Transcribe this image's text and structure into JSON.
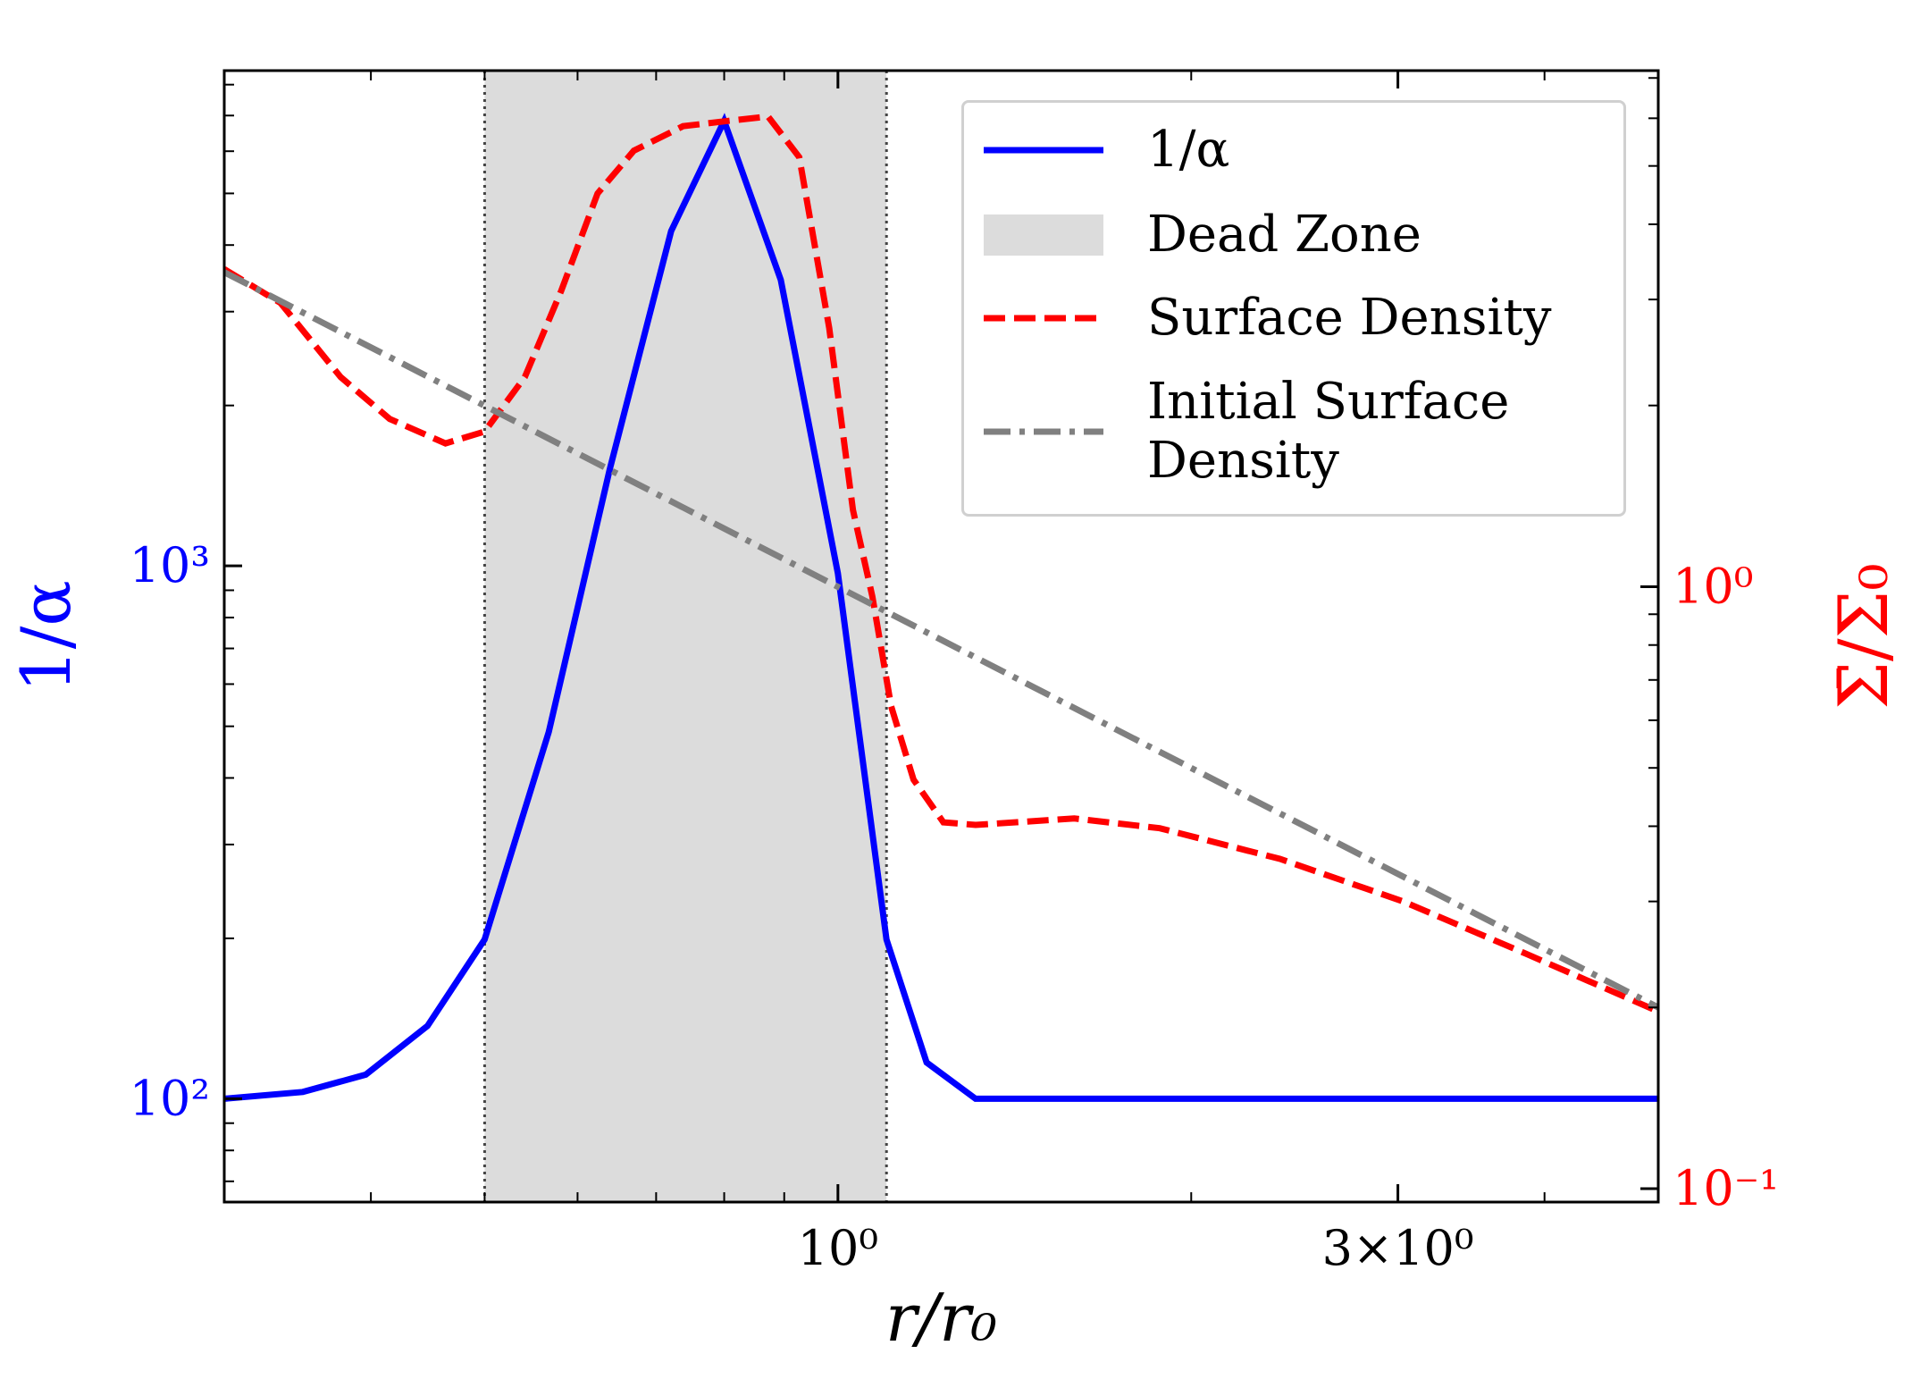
{
  "chart_data": {
    "type": "line",
    "xlabel": "r/r₀",
    "ylabel": "1/α",
    "y2label": "Σ̄/Σ₀",
    "xscale": "log",
    "yscale": "log",
    "y2scale": "log",
    "xlim": [
      0.3,
      5
    ],
    "ylim": [
      64,
      8500
    ],
    "y2lim": [
      0.095,
      7.2
    ],
    "xticks": [
      {
        "value": 1,
        "label": "10⁰"
      },
      {
        "value": 3,
        "label": "3×10⁰"
      }
    ],
    "xminor": [
      0.4,
      0.5,
      0.6,
      0.7,
      0.8,
      0.9,
      2,
      4
    ],
    "yticks": [
      {
        "value": 100,
        "label": "10²"
      },
      {
        "value": 1000,
        "label": "10³"
      }
    ],
    "yminor": [
      70,
      80,
      90,
      200,
      300,
      400,
      500,
      600,
      700,
      800,
      900,
      2000,
      3000,
      4000,
      5000,
      6000,
      7000,
      8000
    ],
    "y2ticks": [
      {
        "value": 0.1,
        "label": "10⁻¹"
      },
      {
        "value": 1,
        "label": "10⁰"
      }
    ],
    "y2minor": [
      0.2,
      0.3,
      0.4,
      0.5,
      0.6,
      0.7,
      0.8,
      0.9,
      2,
      3,
      4,
      5,
      6,
      7
    ],
    "ylabel_color": "#0000ff",
    "y2label_color": "#ff0000",
    "dead_zone": {
      "name": "Dead Zone",
      "range": [
        0.5,
        1.1
      ],
      "color": "#dcdcdc"
    },
    "legend": "upper right",
    "series": [
      {
        "name": "1/α",
        "color": "#0000ff",
        "style": "solid",
        "x": [
          0.3,
          0.35,
          0.396,
          0.447,
          0.5,
          0.567,
          0.639,
          0.721,
          0.8,
          0.894,
          1.0,
          1.1,
          1.19,
          1.31,
          1.5,
          2,
          3,
          5
        ],
        "values": [
          100,
          103,
          111,
          137,
          199,
          488,
          1517,
          4250,
          6840,
          3440,
          968,
          199,
          117,
          100,
          100,
          100,
          100,
          100
        ]
      },
      {
        "name": "Surface Density",
        "color": "#ff0000",
        "style": "dashed",
        "axis": "y2",
        "x": [
          0.3,
          0.335,
          0.377,
          0.415,
          0.463,
          0.5,
          0.541,
          0.581,
          0.624,
          0.67,
          0.738,
          0.812,
          0.872,
          0.927,
          0.983,
          1.03,
          1.07,
          1.11,
          1.16,
          1.23,
          1.31,
          1.59,
          1.88,
          2.38,
          3.03,
          3.85,
          5
        ],
        "values": [
          3.37,
          2.96,
          2.23,
          1.9,
          1.73,
          1.81,
          2.23,
          3.1,
          4.5,
          5.3,
          5.82,
          5.95,
          6.04,
          5.17,
          2.69,
          1.34,
          0.963,
          0.633,
          0.478,
          0.406,
          0.402,
          0.412,
          0.397,
          0.353,
          0.3,
          0.246,
          0.197
        ]
      },
      {
        "name": "Initial Surface Density",
        "color": "#808080",
        "style": "dashdot",
        "axis": "y2",
        "x": [
          0.3,
          5
        ],
        "values": [
          3.33,
          0.2
        ]
      }
    ]
  }
}
